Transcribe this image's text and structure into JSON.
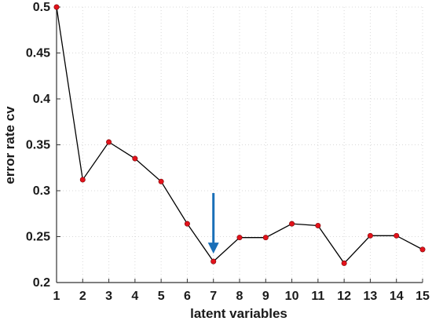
{
  "chart_data": {
    "type": "line",
    "title": "",
    "xlabel": "latent variables",
    "ylabel": "error rate cv",
    "x": [
      1,
      2,
      3,
      4,
      5,
      6,
      7,
      8,
      9,
      10,
      11,
      12,
      13,
      14,
      15
    ],
    "series": [
      {
        "values": [
          0.5,
          0.312,
          0.353,
          0.335,
          0.31,
          0.264,
          0.223,
          0.249,
          0.249,
          0.264,
          0.262,
          0.221,
          0.251,
          0.251,
          0.236
        ]
      }
    ],
    "xlim": [
      1,
      15
    ],
    "ylim": [
      0.2,
      0.5
    ],
    "xticks": [
      "1",
      "2",
      "3",
      "4",
      "5",
      "6",
      "7",
      "8",
      "9",
      "10",
      "11",
      "12",
      "13",
      "14",
      "15"
    ],
    "yticks": [
      "0.2",
      "0.25",
      "0.3",
      "0.35",
      "0.4",
      "0.45",
      "0.5"
    ],
    "grid": true,
    "annotation": {
      "type": "arrow",
      "x": 7
    },
    "colors": {
      "line": "#000000",
      "marker": "#e3121b",
      "arrow": "#1a6fb8",
      "grid": "#d9d9d9",
      "axis": "#333333"
    }
  }
}
